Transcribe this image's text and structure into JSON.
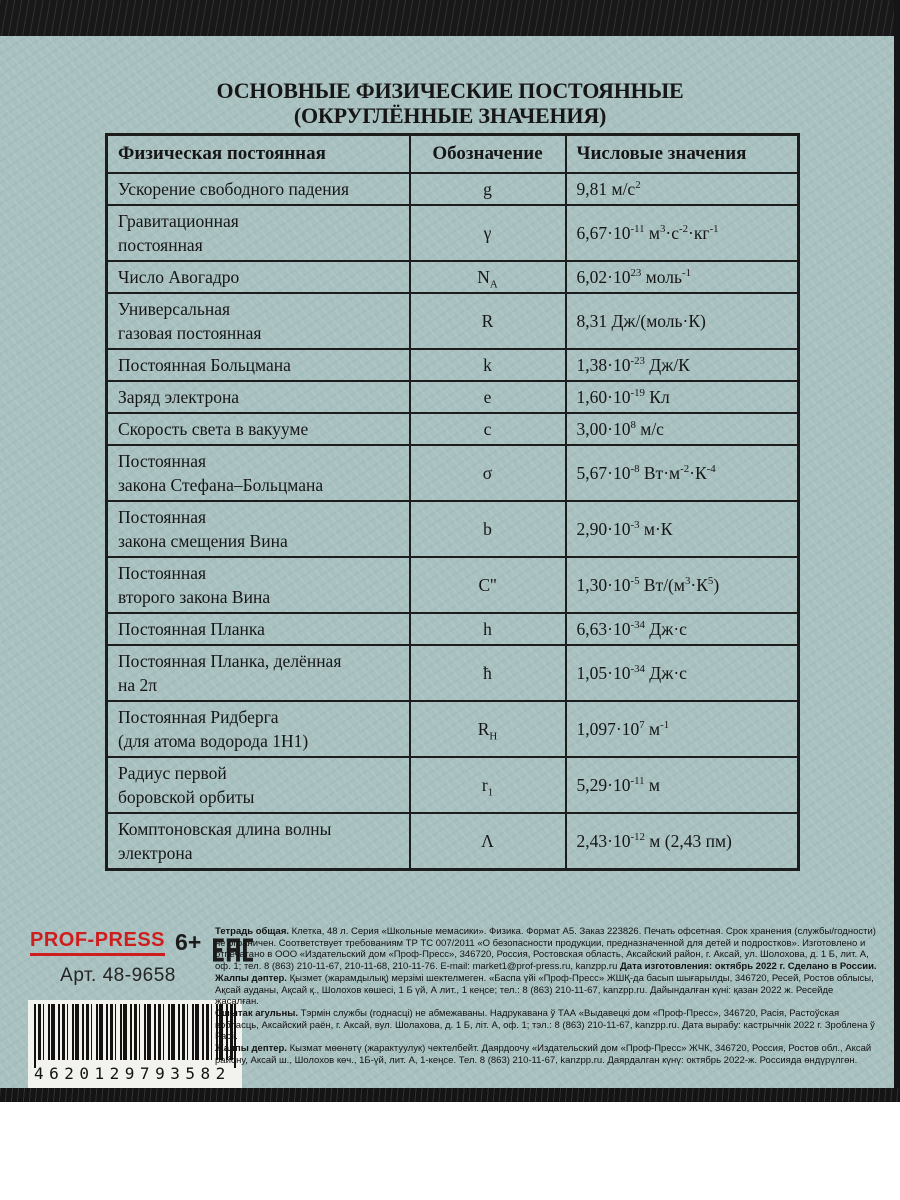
{
  "title": {
    "line1": "ОСНОВНЫЕ ФИЗИЧЕСКИЕ ПОСТОЯННЫЕ",
    "line2": "(ОКРУГЛЁННЫЕ ЗНАЧЕНИЯ)"
  },
  "table": {
    "headers": [
      "Физическая постоянная",
      "Обозначение",
      "Числовые значения"
    ],
    "rows": [
      {
        "name": "Ускорение свободного падения",
        "symbol": "g",
        "value": "9,81 м/с<sup>2</sup>"
      },
      {
        "name": "Гравитационная<br>постоянная",
        "symbol": "γ",
        "value": "6,67·10<sup>-11</sup> м<sup>3</sup>·с<sup>-2</sup>·кг<sup>-1</sup>"
      },
      {
        "name": "Число Авогадро",
        "symbol": "N<sub>A</sub>",
        "value": "6,02·10<sup>23</sup> моль<sup>-1</sup>"
      },
      {
        "name": "Универсальная<br>газовая постоянная",
        "symbol": "R",
        "value": "8,31 Дж/(моль·К)"
      },
      {
        "name": "Постоянная Больцмана",
        "symbol": "k",
        "value": "1,38·10<sup>-23</sup> Дж/К"
      },
      {
        "name": "Заряд электрона",
        "symbol": "e",
        "value": "1,60·10<sup>-19</sup> Кл"
      },
      {
        "name": "Скорость света в вакууме",
        "symbol": "c",
        "value": "3,00·10<sup>8</sup> м/с"
      },
      {
        "name": "Постоянная<br>закона Стефана–Больцмана",
        "symbol": "σ",
        "value": "5,67·10<sup>-8</sup> Вт·м<sup>-2</sup>·К<sup>-4</sup>"
      },
      {
        "name": "Постоянная<br>закона смещения Вина",
        "symbol": "b",
        "value": "2,90·10<sup>-3</sup> м·К"
      },
      {
        "name": "Постоянная<br>второго закона Вина",
        "symbol": "C''",
        "value": "1,30·10<sup>-5</sup> Вт/(м<sup>3</sup>·К<sup>5</sup>)"
      },
      {
        "name": "Постоянная Планка",
        "symbol": "h",
        "value": "6,63·10<sup>-34</sup> Дж·с"
      },
      {
        "name": "Постоянная Планка, делённая<br>на 2π",
        "symbol": "ħ",
        "value": "1,05·10<sup>-34</sup> Дж·с"
      },
      {
        "name": "Постоянная Ридберга<br>(для атома водорода 1Н1)",
        "symbol": "R<sub>H</sub>",
        "value": "1,097·10<sup>7</sup> м<sup>-1</sup>"
      },
      {
        "name": "Радиус первой<br>боровской орбиты",
        "symbol": "r<sub>1</sub>",
        "value": "5,29·10<sup>-11</sup> м"
      },
      {
        "name": "Комптоновская длина волны<br>электрона",
        "symbol": "Λ",
        "value": "2,43·10<sup>-12</sup> м (2,43 пм)"
      }
    ]
  },
  "publisher": {
    "brand": "PROF-PRESS",
    "age_rating": "6+",
    "eac_mark": "EAC",
    "article": "Арт. 48-9658",
    "barcode": "4620129793582"
  },
  "fine_print": [
    [
      {
        "bold": true,
        "text": "Тетрадь общая."
      },
      {
        "bold": false,
        "text": " Клетка, 48 л. Серия «Школьные мемасики». Физика. Формат А5. Заказ 223826. Печать офсетная. Срок хранения (службы/годности) не ограничен. Соответствует требованиям ТР ТС 007/2011 «О безопасности продукции, предназначенной для детей и подростков». Изготовлено и отпечатано в ООО «Издательский дом «Проф-Пресс», 346720, Россия, Ростовская область, Аксайский район, г. Аксай, ул. Шолохова, д. 1 Б, лит. А, оф. 1; тел. 8 (863) 210-11-67, 210-11-68, 210-11-76. E-mail: market1@prof-press.ru, kanzpp.ru"
      },
      {
        "bold": true,
        "text": " Дата изготовления: октябрь 2022 г. Сделано в России."
      }
    ],
    [
      {
        "bold": true,
        "text": "Жалпы дәптер."
      },
      {
        "bold": false,
        "text": " Қызмет (жарамдылық) мерзімі шектелмеген. «Баспа үйі «Проф-Пресс» ЖШҚ-да басып шығарылды, 346720, Ресей, Ростов облысы, Ақсай ауданы, Ақсай қ., Шолохов көшесі, 1 Б үй, А лит., 1 кеңсе; тел.: 8 (863) 210-11-67, kanzpp.ru. Дайындалған күні: қазан 2022 ж. Ресейде жасалған."
      }
    ],
    [
      {
        "bold": true,
        "text": "Сшытак агульны."
      },
      {
        "bold": false,
        "text": " Тэрмін службы (годнасці) не абмежаваны. Надрукавана ў ТАА «Выдавецкі дом «Проф-Пресс», 346720, Расія, Растоўская вобласць, Аксайский раён, г. Аксай, вул. Шолахова, д. 1 Б, літ. А, оф. 1; тэл.: 8 (863) 210-11-67, kanzpp.ru. Дата вырабу: кастрычнік 2022 г. Зроблена ў Расіі."
      }
    ],
    [
      {
        "bold": true,
        "text": "Жалпы дептер."
      },
      {
        "bold": false,
        "text": " Кызмат мөөнөтү (жарактуулук) чектелбейт. Даярдоочу «Издательский дом «Проф-Пресс» ЖЧК, 346720, Россия, Ростов обл., Аксай району, Аксай ш., Шолохов көч., 1Б-үй, лит. А, 1-кеңсе. Тел. 8 (863) 210-11-67, kanzpp.ru. Даярдалган күнү: октябрь 2022-ж. Россияда өндүрүлгөн."
      }
    ]
  ],
  "colors": {
    "cover_teal": "#a8c1c0",
    "border_black": "#181818",
    "brand_red": "#cf1d1d",
    "table_ink": "#1d1d1d"
  }
}
